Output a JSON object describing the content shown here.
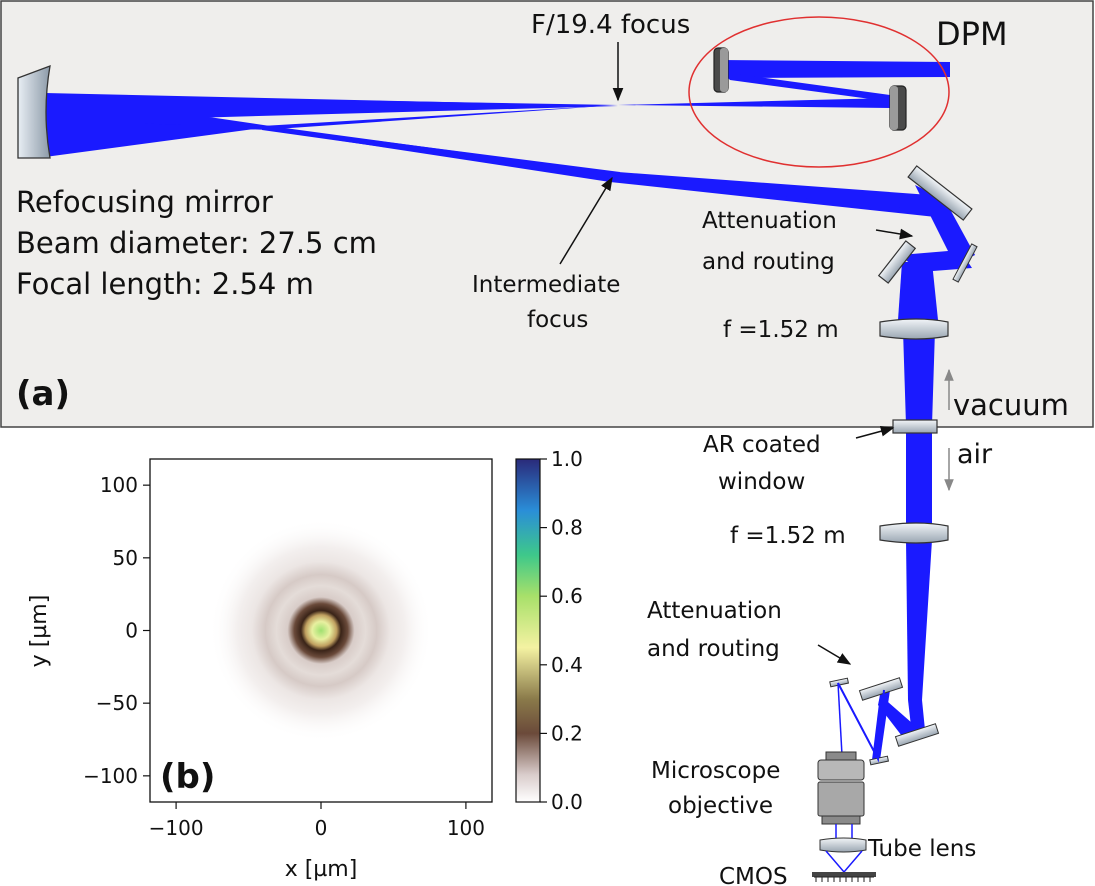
{
  "panel_a": {
    "panel_label": "(a)",
    "f_focus": "F/19.4 focus",
    "dpm": "DPM",
    "refocus_line1": "Refocusing mirror",
    "refocus_line2": "Beam diameter: 27.5 cm",
    "refocus_line3": "Focal length: 2.54 m",
    "intermediate_1": "Intermediate",
    "intermediate_2": "focus",
    "atten_top_1": "Attenuation",
    "atten_top_2": "and routing",
    "lens_top": "f =1.52 m",
    "vacuum": "vacuum",
    "air": "air",
    "window_1": "AR coated",
    "window_2": "window",
    "lens_bottom": "f =1.52 m",
    "atten_bottom_1": "Attenuation",
    "atten_bottom_2": "and routing",
    "microscope_1": "Microscope",
    "microscope_2": "objective",
    "tube_lens": "Tube lens",
    "cmos": "CMOS"
  },
  "colors": {
    "beam": "#1a1aff",
    "panel_bg": "#efeeec",
    "ellipse": "#e03030"
  },
  "chart_data": {
    "type": "heatmap",
    "panel_label": "(b)",
    "xlabel": "x [µm]",
    "ylabel": "y [µm]",
    "xlim": [
      -118,
      118
    ],
    "ylim": [
      -118,
      118
    ],
    "x_ticks": [
      "−100",
      "0",
      "100"
    ],
    "x_tick_values": [
      -100,
      0,
      100
    ],
    "y_ticks": [
      "100",
      "50",
      "0",
      "−50",
      "−100"
    ],
    "y_tick_values": [
      100,
      50,
      0,
      -50,
      -100
    ],
    "colorbar": {
      "min": 0.0,
      "max": 1.0,
      "ticks": [
        "1.0",
        "0.8",
        "0.6",
        "0.4",
        "0.2",
        "0.0"
      ],
      "tick_values": [
        1.0,
        0.8,
        0.6,
        0.4,
        0.2,
        0.0
      ]
    },
    "airy_profile": [
      {
        "r": 0,
        "value": 0.62
      },
      {
        "r": 5,
        "value": 0.5
      },
      {
        "r": 10,
        "value": 0.18
      },
      {
        "r": 13,
        "value": 0.08
      },
      {
        "r": 18,
        "value": 0.04
      },
      {
        "r": 30,
        "value": 0.03
      },
      {
        "r": 50,
        "value": 0.015
      },
      {
        "r": 70,
        "value": 0.0
      }
    ]
  }
}
